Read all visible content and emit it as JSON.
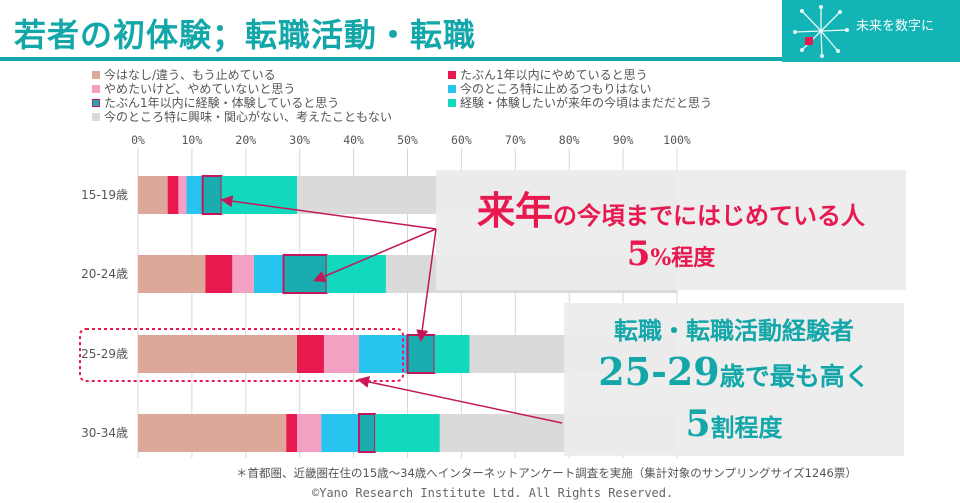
{
  "title": "若者の初体験；転職活動・転職",
  "brand": {
    "text": "未来を数字に"
  },
  "colors": {
    "teal": "#13a7a9",
    "pink": "#e8194f"
  },
  "chart_data": {
    "type": "bar",
    "stacked": true,
    "orientation": "horizontal",
    "title": "",
    "xlim": [
      0,
      100
    ],
    "x_ticks": [
      "0%",
      "10%",
      "20%",
      "30%",
      "40%",
      "50%",
      "60%",
      "70%",
      "80%",
      "90%",
      "100%"
    ],
    "grid": true,
    "legend_position": "top",
    "categories": [
      "15-19歳",
      "20-24歳",
      "25-29歳",
      "30-34歳"
    ],
    "series": [
      {
        "name": "今はなし/違う、もう止めている",
        "color": "#dba89a",
        "values": [
          5.5,
          12.5,
          29.5,
          27.5
        ]
      },
      {
        "name": "たぶん1年以内にやめていると思う",
        "color": "#e8194f",
        "values": [
          2,
          5,
          5,
          2
        ]
      },
      {
        "name": "やめたいけど、やめていないと思う",
        "color": "#f4a0c2",
        "values": [
          1.5,
          4,
          6.5,
          4.5
        ]
      },
      {
        "name": "今のところ特に止めるつもりはない",
        "color": "#27c4f0",
        "values": [
          3,
          5.5,
          9,
          7
        ]
      },
      {
        "name": "たぶん1年以内に経験・体験していると思う",
        "color": "#1aacae",
        "values": [
          3.5,
          8,
          5,
          3
        ]
      },
      {
        "name": "経験・体験したいが来年の今頃はまだだと思う",
        "color": "#12d9be",
        "values": [
          14,
          11,
          6.5,
          12
        ]
      },
      {
        "name": "今のところ特に興味・関心がない、考えたこともない",
        "color": "#dadada",
        "values": [
          70.5,
          54,
          38.5,
          44
        ]
      }
    ]
  },
  "callout_top": {
    "line1_big": "来年",
    "line1_rest": "の今頃までにはじめている人",
    "line2_num": "5",
    "line2_unit": "%程度"
  },
  "callout_bottom": {
    "line1": "転職・転職活動経験者",
    "line2_num": "25-29",
    "line2_rest": "歳で最も高く",
    "line3_num": "5",
    "line3_rest": "割程度"
  },
  "footnote": "＊首都圏、近畿圏在住の15歳～34歳へインターネットアンケート調査を実施（集計対象のサンプリングサイズ1246票）",
  "copyright": "©Yano Research Institute Ltd. All Rights Reserved."
}
